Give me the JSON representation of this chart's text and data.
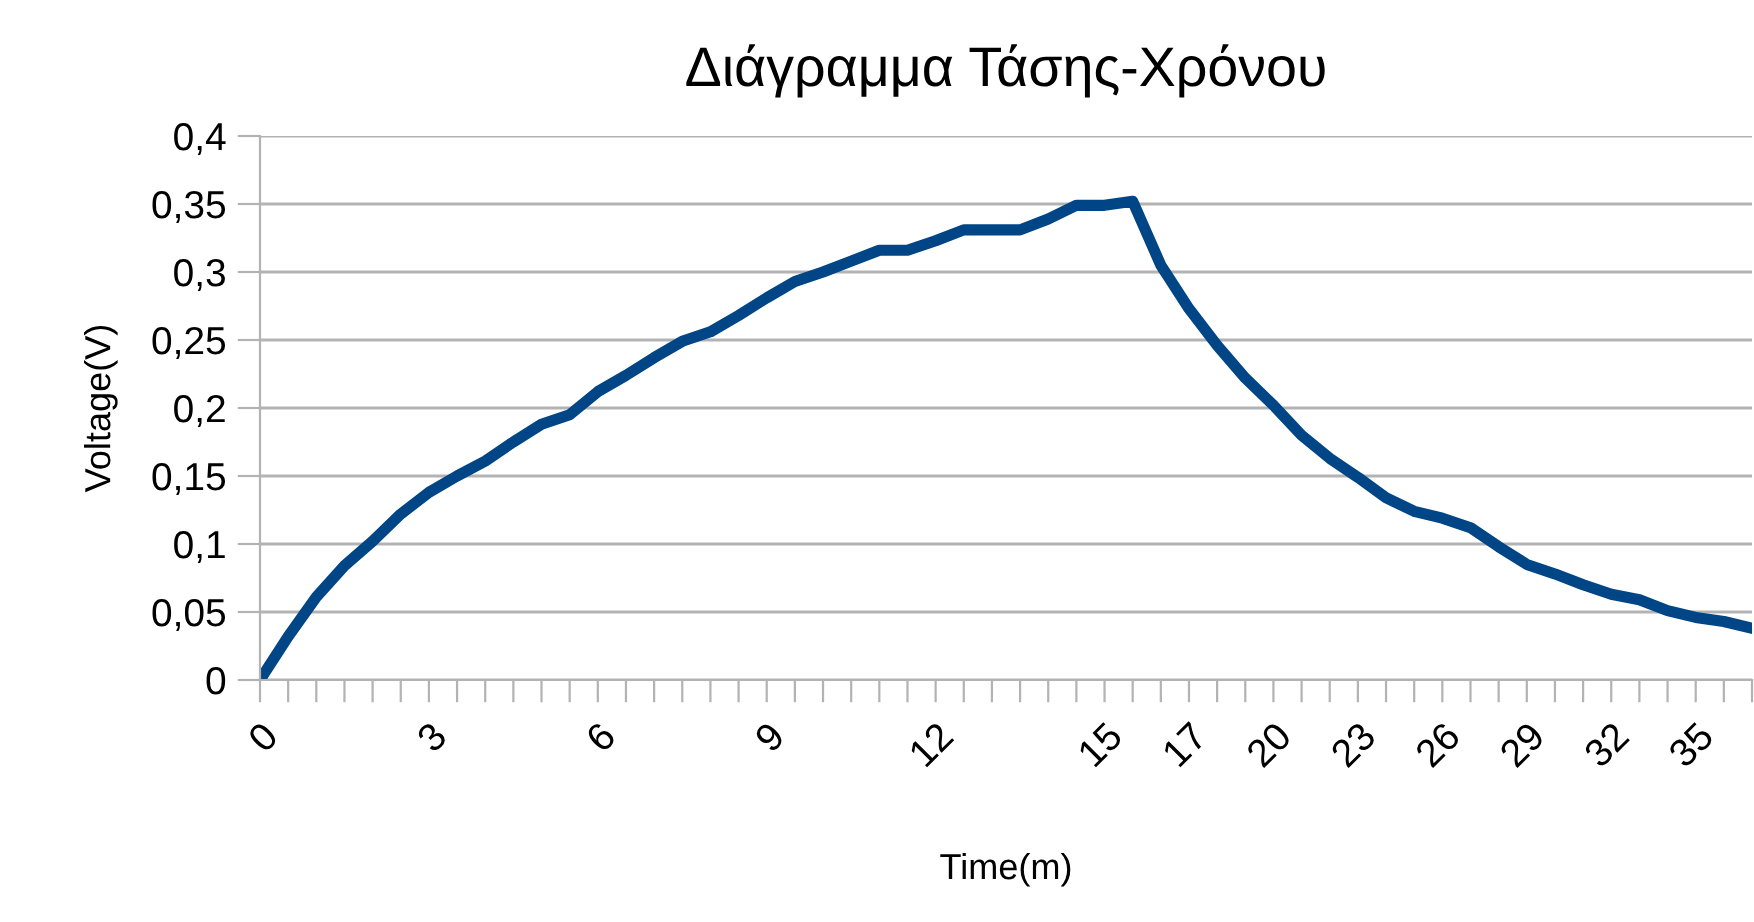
{
  "chart_data": {
    "type": "line",
    "title": "Διάγραμμα Τάσης-Χρόνου",
    "xlabel": "Time(m)",
    "ylabel": "Voltage(V)",
    "categories": [
      "0",
      null,
      null,
      null,
      null,
      null,
      "3",
      null,
      null,
      null,
      null,
      null,
      "6",
      null,
      null,
      null,
      null,
      null,
      "9",
      null,
      null,
      null,
      null,
      null,
      "12",
      null,
      null,
      null,
      null,
      null,
      "15",
      null,
      null,
      "17",
      null,
      null,
      "20",
      null,
      null,
      "23",
      null,
      null,
      "26",
      null,
      null,
      "29",
      null,
      null,
      "32",
      null,
      null,
      "35",
      null,
      null
    ],
    "series": [
      {
        "color": "#004586",
        "values": [
          0,
          0.032,
          0.061,
          0.084,
          0.102,
          0.122,
          0.138,
          0.15,
          0.161,
          0.175,
          0.188,
          0.195,
          0.212,
          0.224,
          0.237,
          0.249,
          0.256,
          0.268,
          0.281,
          0.293,
          0.3,
          0.308,
          0.316,
          0.316,
          0.323,
          0.331,
          0.331,
          0.331,
          0.339,
          0.349,
          0.349,
          0.352,
          0.305,
          0.273,
          0.246,
          0.222,
          0.202,
          0.18,
          0.163,
          0.149,
          0.134,
          0.124,
          0.119,
          0.112,
          0.098,
          0.085,
          0.078,
          0.07,
          0.063,
          0.059,
          0.051,
          0.046,
          0.043,
          0.038
        ]
      }
    ],
    "ylim": [
      0,
      0.4
    ],
    "yticks": [
      0,
      {
        "value": 0.05,
        "label": "0,05"
      },
      {
        "value": 0.1,
        "label": "0,1"
      },
      {
        "value": 0.15,
        "label": "0,15"
      },
      {
        "value": 0.2,
        "label": "0,2"
      },
      {
        "value": 0.25,
        "label": "0,25"
      },
      {
        "value": 0.3,
        "label": "0,3"
      },
      {
        "value": 0.35,
        "label": "0,35"
      },
      {
        "value": 0.4,
        "label": "0,4"
      }
    ],
    "grid": "y",
    "marker": "none",
    "line_style": "solid"
  }
}
